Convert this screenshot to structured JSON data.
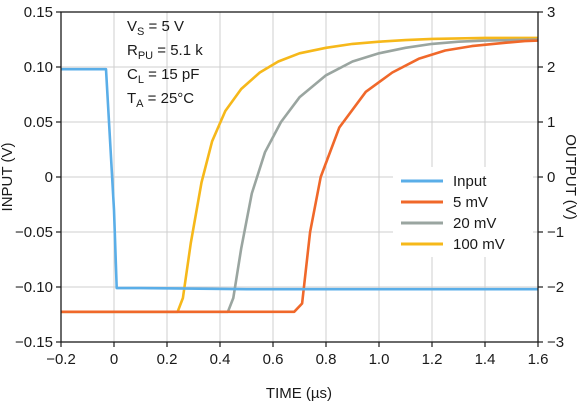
{
  "chart_data": {
    "type": "line",
    "xlabel": "TIME (µs)",
    "ylabel_left": "INPUT (V)",
    "ylabel_right": "OUTPUT (V)",
    "xlim": [
      -0.2,
      1.6
    ],
    "ylim_left": [
      -0.15,
      0.15
    ],
    "ylim_right": [
      -3,
      3
    ],
    "x_ticks": [
      "−0.2",
      "0",
      "0.2",
      "0.4",
      "0.6",
      "0.8",
      "1.0",
      "1.2",
      "1.4",
      "1.6"
    ],
    "y_ticks_left": [
      "0.15",
      "0.10",
      "0.05",
      "0",
      "−0.05",
      "−0.10",
      "−0.15"
    ],
    "y_ticks_right": [
      "3",
      "2",
      "1",
      "0",
      "−1",
      "−2",
      "−3"
    ],
    "grid": true,
    "legend_position": "lower-right",
    "annotations": {
      "vs": "V",
      "vs_sub": "S",
      "vs_val": " = 5 V",
      "rpu": "R",
      "rpu_sub": "PU",
      "rpu_val": " = 5.1 k",
      "cl": "C",
      "cl_sub": "L",
      "cl_val": " = 15 pF",
      "ta": "T",
      "ta_sub": "A",
      "ta_val": " = 25°C"
    },
    "series": [
      {
        "name": "Input",
        "axis": "left",
        "color": "#5aaee8",
        "x": [
          -0.2,
          -0.03,
          0.0,
          0.01,
          0.1,
          0.5,
          1.0,
          1.6
        ],
        "y": [
          0.098,
          0.098,
          -0.03,
          -0.101,
          -0.101,
          -0.102,
          -0.102,
          -0.102
        ]
      },
      {
        "name": "5 mV",
        "axis": "right",
        "color": "#f0682a",
        "x": [
          -0.2,
          0.68,
          0.71,
          0.74,
          0.78,
          0.85,
          0.95,
          1.05,
          1.15,
          1.25,
          1.35,
          1.45,
          1.55,
          1.6
        ],
        "y": [
          -2.45,
          -2.45,
          -2.3,
          -1.0,
          0.0,
          0.9,
          1.55,
          1.9,
          2.15,
          2.3,
          2.38,
          2.43,
          2.47,
          2.48
        ]
      },
      {
        "name": "20 mV",
        "axis": "right",
        "color": "#9aa5a0",
        "x": [
          -0.2,
          0.43,
          0.45,
          0.48,
          0.52,
          0.57,
          0.63,
          0.7,
          0.8,
          0.9,
          1.0,
          1.1,
          1.2,
          1.3,
          1.4,
          1.5,
          1.6
        ],
        "y": [
          -2.45,
          -2.45,
          -2.2,
          -1.3,
          -0.3,
          0.45,
          1.0,
          1.45,
          1.85,
          2.1,
          2.25,
          2.35,
          2.42,
          2.46,
          2.48,
          2.49,
          2.5
        ]
      },
      {
        "name": "100 mV",
        "axis": "right",
        "color": "#f6b81a",
        "x": [
          -0.2,
          0.24,
          0.26,
          0.29,
          0.33,
          0.37,
          0.42,
          0.48,
          0.55,
          0.62,
          0.7,
          0.8,
          0.9,
          1.0,
          1.1,
          1.2,
          1.3,
          1.4,
          1.5,
          1.6
        ],
        "y": [
          -2.45,
          -2.45,
          -2.2,
          -1.2,
          -0.1,
          0.65,
          1.2,
          1.6,
          1.9,
          2.1,
          2.25,
          2.35,
          2.42,
          2.46,
          2.49,
          2.51,
          2.52,
          2.53,
          2.53,
          2.53
        ]
      }
    ]
  }
}
